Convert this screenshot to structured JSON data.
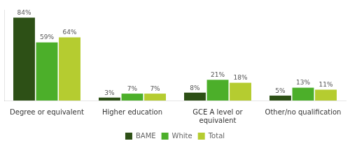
{
  "chart_data": {
    "type": "bar",
    "categories": [
      "Degree or equivalent",
      "Higher education",
      "GCE A level or\nequivalent",
      "Other/no qualification"
    ],
    "series": [
      {
        "name": "BAME",
        "color": "#2d5016",
        "values": [
          84,
          3,
          8,
          5
        ],
        "value_labels": [
          "84%",
          "3%",
          "8%",
          "5%"
        ]
      },
      {
        "name": "White",
        "color": "#4caf2a",
        "values": [
          59,
          7,
          21,
          13
        ],
        "value_labels": [
          "59%",
          "7%",
          "21%",
          "13%"
        ]
      },
      {
        "name": "Total",
        "color": "#b5cc30",
        "values": [
          64,
          7,
          18,
          11
        ],
        "value_labels": [
          "64%",
          "7%",
          "18%",
          "11%"
        ]
      }
    ],
    "ylim": [
      0,
      92
    ],
    "grid": false,
    "legend": "bottom",
    "data_labels": true,
    "tick_labels": "x"
  }
}
